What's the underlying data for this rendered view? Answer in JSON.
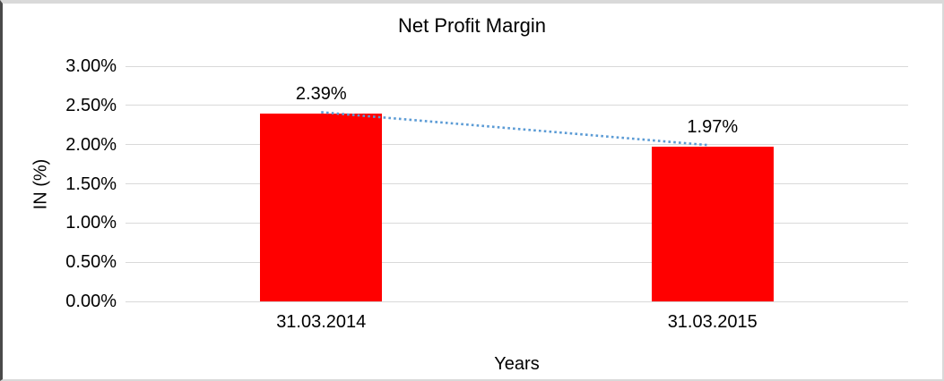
{
  "chart_data": {
    "type": "bar",
    "title": "Net Profit Margin",
    "categories": [
      "31.03.2014",
      "31.03.2015"
    ],
    "series": [
      {
        "name": "Net Profit Margin",
        "values": [
          2.39,
          1.97
        ]
      }
    ],
    "value_labels": [
      "2.39%",
      "1.97%"
    ],
    "xlabel": "Years",
    "ylabel": "IN (%)",
    "ylim": [
      0,
      3
    ],
    "ytick_labels": [
      "0.00%",
      "0.50%",
      "1.00%",
      "1.50%",
      "2.00%",
      "2.50%",
      "3.00%"
    ],
    "grid": true,
    "legend": false,
    "trendline": {
      "style": "dotted"
    },
    "colors": {
      "bar": "#ff0000",
      "trendline": "#5b9bd5",
      "gridline": "#d9d9d9",
      "text": "#000000"
    }
  }
}
